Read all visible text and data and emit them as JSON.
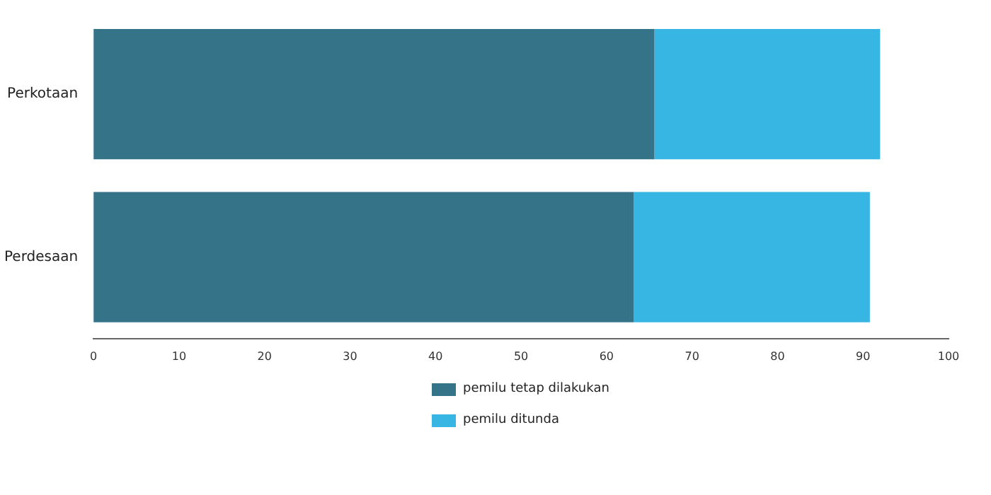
{
  "chart_data": {
    "type": "bar",
    "orientation": "horizontal",
    "stacked": true,
    "categories": [
      "Perkotaan",
      "Perdesaan"
    ],
    "series": [
      {
        "name": "pemilu tetap dilakukan",
        "color": "#357388",
        "values": [
          65.6,
          63.2
        ]
      },
      {
        "name": "pemilu ditunda",
        "color": "#37b5e3",
        "values": [
          26.4,
          27.6
        ]
      }
    ],
    "xlim": [
      0,
      100
    ],
    "xticks": [
      0,
      10,
      20,
      30,
      40,
      50,
      60,
      70,
      80,
      90,
      100
    ],
    "grid": false,
    "legend": "bottom"
  }
}
